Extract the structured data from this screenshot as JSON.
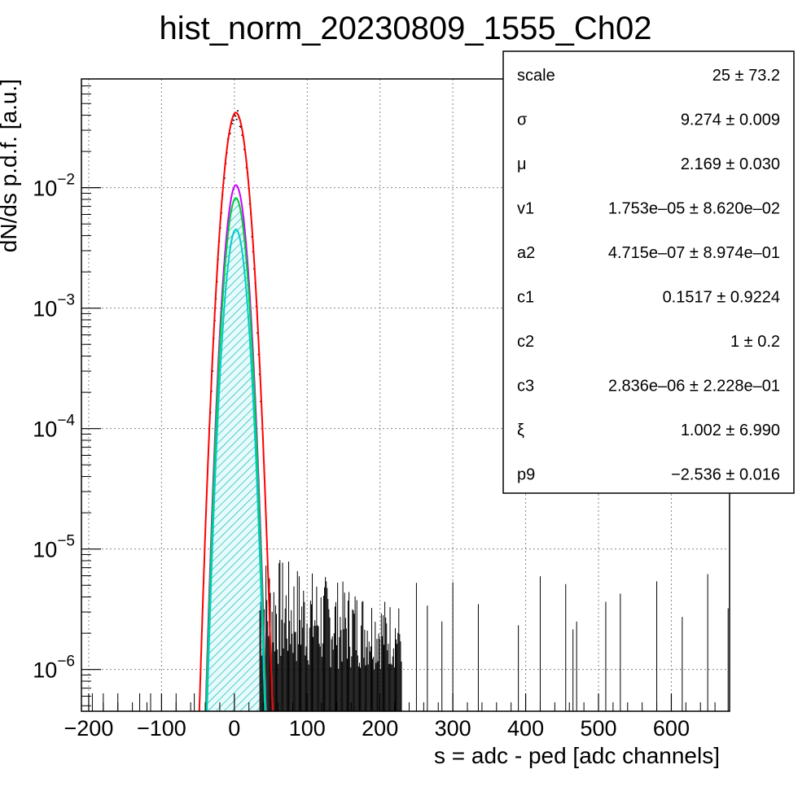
{
  "chart_data": {
    "type": "histogram",
    "title": "hist_norm_20230809_1555_Ch02",
    "xlabel": "s = adc - ped [adc channels]",
    "ylabel": "dN/ds p.d.f. [a.u.]",
    "xlim": [
      -210,
      680
    ],
    "ylim": [
      4.5e-07,
      0.08
    ],
    "yscale": "log",
    "grid": true,
    "xticks": [
      {
        "value": -200,
        "label": "−200"
      },
      {
        "value": -100,
        "label": "−100"
      },
      {
        "value": 0,
        "label": "0"
      },
      {
        "value": 100,
        "label": "100"
      },
      {
        "value": 200,
        "label": "200"
      },
      {
        "value": 300,
        "label": "300"
      },
      {
        "value": 400,
        "label": "400"
      },
      {
        "value": 500,
        "label": "500"
      },
      {
        "value": 600,
        "label": "600"
      }
    ],
    "yticks": [
      {
        "value": 1e-06,
        "base": "10",
        "exp": "−6"
      },
      {
        "value": 1e-05,
        "base": "10",
        "exp": "−5"
      },
      {
        "value": 0.0001,
        "base": "10",
        "exp": "−4"
      },
      {
        "value": 0.001,
        "base": "10",
        "exp": "−3"
      },
      {
        "value": 0.01,
        "base": "10",
        "exp": "−2"
      }
    ],
    "peak": {
      "mean": 2.169,
      "sigma": 9.274
    },
    "series": [
      {
        "color": "#ff0000",
        "peak_value": 0.042,
        "sigma": 10.5,
        "kind": "total-fit"
      },
      {
        "color": "#cc00ff",
        "peak_value": 0.0105,
        "sigma": 9.274,
        "kind": "component"
      },
      {
        "color": "#00cc33",
        "peak_value": 0.0082,
        "sigma": 9.274,
        "kind": "component"
      },
      {
        "color": "#00cccc",
        "peak_value": 0.0045,
        "sigma": 9.274,
        "kind": "component-hatched"
      }
    ],
    "tail": {
      "xmin": 35,
      "xmax": 230,
      "low": 1e-06,
      "high": 1e-05,
      "sparse_points": [
        250,
        265,
        285,
        300,
        335,
        390,
        420,
        455,
        465,
        470,
        510,
        530,
        580,
        615,
        650,
        678
      ]
    },
    "stats_box": {
      "position": "top-right",
      "rows": [
        {
          "name": "scale",
          "value": "25 ± 73.2"
        },
        {
          "name": "σ",
          "value": "9.274 ± 0.009"
        },
        {
          "name": "μ",
          "value": "2.169 ± 0.030"
        },
        {
          "name": "v1",
          "value": "1.753e–05 ± 8.620e–02"
        },
        {
          "name": "a2",
          "value": "4.715e–07 ± 8.974e–01"
        },
        {
          "name": "c1",
          "value": "0.1517 ± 0.9224"
        },
        {
          "name": "c2",
          "value": "1 ± 0.2"
        },
        {
          "name": "c3",
          "value": "2.836e–06 ± 2.228e–01"
        },
        {
          "name": "ξ",
          "value": "1.002 ± 6.990"
        },
        {
          "name": "p9",
          "value": "−2.536 ± 0.016"
        }
      ]
    }
  }
}
